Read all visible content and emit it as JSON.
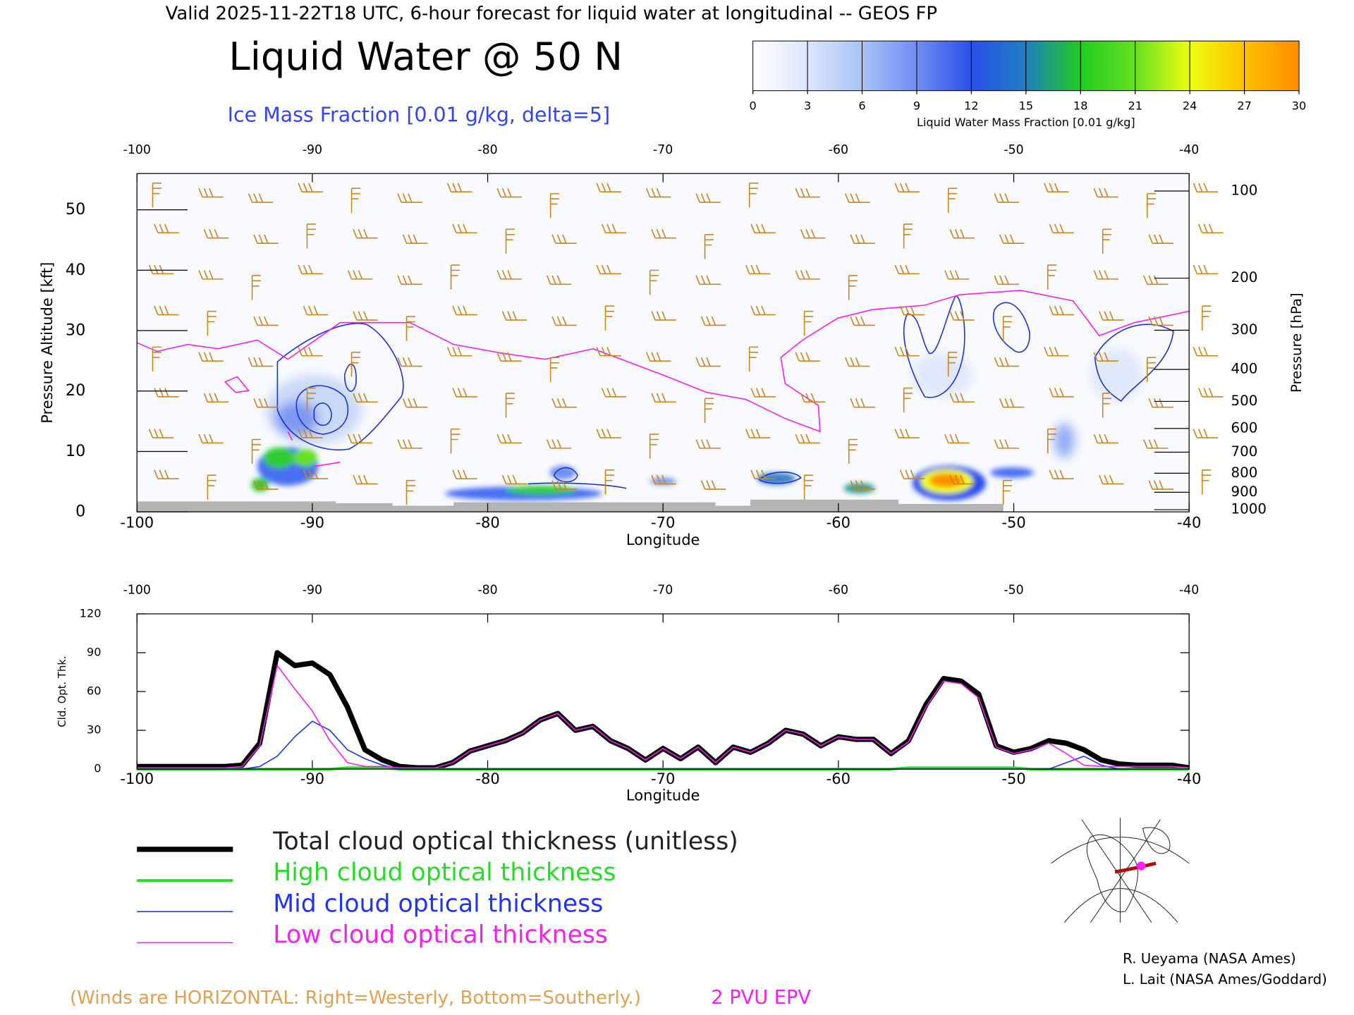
{
  "header": {
    "valid": "Valid 2025-11-22T18 UTC, 6-hour forecast for liquid water at longitudinal -- GEOS FP",
    "title": "Liquid Water @ 50 N",
    "subtitle": "Ice Mass Fraction [0.01 g/kg, delta=5]"
  },
  "chart_data": [
    {
      "type": "cross-section",
      "xlabel": "Longitude",
      "ylabel": "Pressure Altitude [kft]",
      "y2label": "Pressure [hPa]",
      "xlim": [
        -100,
        -40
      ],
      "xticks": [
        -100,
        -90,
        -80,
        -70,
        -60,
        -50,
        -40
      ],
      "ylim": [
        0,
        56
      ],
      "yticks": [
        0,
        10,
        20,
        30,
        40,
        50
      ],
      "y2lim": [
        1013.25,
        87
      ],
      "y2ticks": [
        100,
        200,
        300,
        400,
        500,
        600,
        700,
        800,
        900,
        1000
      ],
      "colorbar": {
        "label": "Liquid Water Mass Fraction [0.01 g/kg]",
        "ticks": [
          0,
          3,
          6,
          9,
          12,
          15,
          18,
          21,
          24,
          27,
          30
        ],
        "colors": [
          "#ffffff",
          "#dce6fb",
          "#a8c2f6",
          "#6f8ef2",
          "#2a4fe8",
          "#1f7fc0",
          "#20cc20",
          "#66e020",
          "#eeff10",
          "#ffc000",
          "#ff8c00",
          "#ff2a00"
        ]
      }
    },
    {
      "type": "line",
      "xlabel": "Longitude",
      "ylabel": "Cld. Opt. Thk.",
      "xlim": [
        -100,
        -40
      ],
      "xticks": [
        -100,
        -90,
        -80,
        -70,
        -60,
        -50,
        -40
      ],
      "ylim": [
        0,
        120
      ],
      "yticks": [
        0,
        30,
        60,
        90,
        120
      ],
      "x": [
        -100,
        -99,
        -98,
        -97,
        -96,
        -95,
        -94,
        -93,
        -92,
        -91,
        -90,
        -89,
        -88,
        -87,
        -86,
        -85,
        -84,
        -83,
        -82,
        -81,
        -80,
        -79,
        -78,
        -77,
        -76,
        -75,
        -74,
        -73,
        -72,
        -71,
        -70,
        -69,
        -68,
        -67,
        -66,
        -65,
        -64,
        -63,
        -62,
        -61,
        -60,
        -59,
        -58,
        -57,
        -56,
        -55,
        -54,
        -53,
        -52,
        -51,
        -50,
        -49,
        -48,
        -47,
        -46,
        -45,
        -44,
        -43,
        -42,
        -41,
        -40
      ],
      "series": [
        {
          "name": "Total cloud optical thickness (unitless)",
          "color": "#000000",
          "values": [
            2,
            2,
            2,
            2,
            2,
            2,
            3,
            20,
            90,
            80,
            82,
            73,
            48,
            15,
            7,
            2,
            1,
            1,
            5,
            14,
            18,
            22,
            28,
            38,
            43,
            30,
            33,
            22,
            16,
            7,
            16,
            8,
            17,
            5,
            17,
            13,
            20,
            30,
            27,
            18,
            25,
            23,
            23,
            12,
            22,
            50,
            70,
            68,
            58,
            18,
            13,
            16,
            22,
            20,
            15,
            7,
            4,
            3,
            3,
            3,
            1
          ]
        },
        {
          "name": "High cloud optical thickness",
          "color": "#22dd22",
          "values": [
            0,
            0,
            0,
            0,
            0,
            0,
            0,
            0,
            0,
            0,
            0,
            0,
            1,
            1,
            1,
            0,
            0,
            0,
            0,
            0,
            0,
            0,
            0,
            0,
            0,
            0,
            0,
            0,
            0,
            0,
            0,
            0,
            0,
            0,
            0,
            0,
            0,
            0,
            0,
            0,
            0,
            0,
            0,
            0,
            1,
            1,
            1,
            1,
            1,
            1,
            1,
            0,
            0,
            0,
            0,
            0,
            0,
            0,
            0,
            0,
            0
          ]
        },
        {
          "name": "Mid cloud optical thickness",
          "color": "#2233ee",
          "values": [
            0,
            0,
            0,
            0,
            0,
            0,
            0,
            2,
            10,
            25,
            37,
            30,
            15,
            8,
            3,
            0,
            0,
            0,
            0,
            0,
            0,
            0,
            0,
            0,
            0,
            0,
            0,
            0,
            0,
            0,
            0,
            0,
            0,
            0,
            0,
            0,
            0,
            0,
            0,
            0,
            0,
            0,
            0,
            0,
            0,
            0,
            0,
            0,
            0,
            0,
            0,
            0,
            0,
            5,
            10,
            3,
            0,
            0,
            0,
            0,
            0
          ]
        },
        {
          "name": "Low cloud optical thickness",
          "color": "#ee22ee",
          "values": [
            1,
            1,
            1,
            1,
            1,
            1,
            2,
            18,
            80,
            62,
            45,
            22,
            5,
            2,
            2,
            1,
            1,
            1,
            5,
            14,
            18,
            22,
            28,
            38,
            43,
            30,
            33,
            22,
            16,
            7,
            16,
            8,
            17,
            5,
            17,
            13,
            20,
            30,
            27,
            18,
            25,
            23,
            23,
            12,
            21,
            48,
            68,
            66,
            55,
            17,
            12,
            15,
            20,
            12,
            3,
            2,
            2,
            2,
            2,
            2,
            1
          ]
        }
      ]
    }
  ],
  "footer": {
    "winds": "(Winds are HORIZONTAL: Right=Westerly, Bottom=Southerly.)",
    "epv": "2 PVU EPV",
    "credits": [
      "R. Ueyama (NASA Ames)",
      "L. Lait (NASA Ames/Goddard)"
    ]
  }
}
